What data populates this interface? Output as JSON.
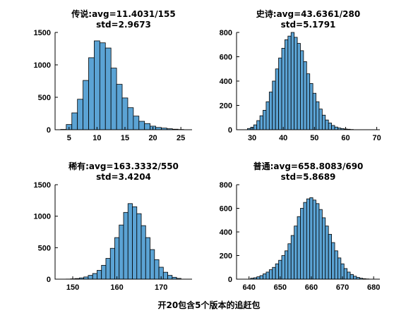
{
  "figure_title": "开20包含5个版本的追赶包",
  "colors": {
    "bar_fill": "#5ba3d4",
    "bar_edge": "#000000",
    "background": "#ffffff"
  },
  "chart_data": [
    {
      "type": "bar",
      "title": [
        "传说:avg=11.4031/155",
        "std=2.9673"
      ],
      "xlabel": "",
      "ylabel": "",
      "xlim": [
        2.5,
        27
      ],
      "ylim": [
        0,
        1500
      ],
      "xticks": [
        5,
        10,
        15,
        20,
        25
      ],
      "yticks": [
        0,
        500,
        1000,
        1500
      ],
      "bin_width": 1,
      "x": [
        4,
        5,
        6,
        7,
        8,
        9,
        10,
        11,
        12,
        13,
        14,
        15,
        16,
        17,
        18,
        19,
        20,
        21,
        22,
        23,
        24,
        25
      ],
      "values": [
        5,
        80,
        260,
        470,
        760,
        1110,
        1370,
        1340,
        1260,
        950,
        700,
        490,
        340,
        210,
        130,
        95,
        55,
        35,
        25,
        15,
        8,
        4
      ]
    },
    {
      "type": "bar",
      "title": [
        "史诗:avg=43.6361/280",
        "std=5.1791"
      ],
      "xlabel": "",
      "ylabel": "",
      "xlim": [
        25,
        71
      ],
      "ylim": [
        0,
        800
      ],
      "xticks": [
        30,
        40,
        50,
        60,
        70
      ],
      "yticks": [
        0,
        200,
        400,
        600,
        800
      ],
      "bin_width": 1,
      "x": [
        29,
        30,
        31,
        32,
        33,
        34,
        35,
        36,
        37,
        38,
        39,
        40,
        41,
        42,
        43,
        44,
        45,
        46,
        47,
        48,
        49,
        50,
        51,
        52,
        53,
        54,
        55,
        56,
        57,
        58,
        59,
        60,
        61,
        62
      ],
      "values": [
        10,
        20,
        40,
        75,
        115,
        160,
        230,
        310,
        400,
        500,
        590,
        670,
        740,
        770,
        800,
        760,
        710,
        650,
        560,
        460,
        380,
        300,
        230,
        170,
        120,
        80,
        55,
        35,
        22,
        14,
        9,
        6,
        4,
        2
      ]
    },
    {
      "type": "bar",
      "title": [
        "稀有:avg=163.3332/550",
        "std=3.4204"
      ],
      "xlabel": "",
      "ylabel": "",
      "xlim": [
        146,
        177
      ],
      "ylim": [
        0,
        1500
      ],
      "xticks": [
        150,
        160,
        170
      ],
      "yticks": [
        0,
        500,
        1000,
        1500
      ],
      "bin_width": 1,
      "x": [
        149,
        150,
        151,
        152,
        153,
        154,
        155,
        156,
        157,
        158,
        159,
        160,
        161,
        162,
        163,
        164,
        165,
        166,
        167,
        168,
        169,
        170,
        171,
        172,
        173,
        174
      ],
      "values": [
        2,
        5,
        10,
        20,
        35,
        60,
        90,
        140,
        220,
        330,
        490,
        660,
        860,
        1060,
        1200,
        1150,
        1040,
        850,
        660,
        470,
        310,
        190,
        110,
        60,
        30,
        12
      ]
    },
    {
      "type": "bar",
      "title": [
        "普通:avg=658.8083/690",
        "std=5.8689"
      ],
      "xlabel": "",
      "ylabel": "",
      "xlim": [
        636,
        682
      ],
      "ylim": [
        0,
        800
      ],
      "xticks": [
        640,
        650,
        660,
        670,
        680
      ],
      "yticks": [
        0,
        200,
        400,
        600,
        800
      ],
      "bin_width": 1,
      "x": [
        641,
        642,
        643,
        644,
        645,
        646,
        647,
        648,
        649,
        650,
        651,
        652,
        653,
        654,
        655,
        656,
        657,
        658,
        659,
        660,
        661,
        662,
        663,
        664,
        665,
        666,
        667,
        668,
        669,
        670,
        671,
        672,
        673,
        674,
        675,
        676,
        677,
        678
      ],
      "values": [
        8,
        12,
        20,
        30,
        45,
        60,
        80,
        100,
        130,
        160,
        200,
        240,
        300,
        370,
        450,
        530,
        600,
        650,
        680,
        690,
        670,
        640,
        590,
        520,
        450,
        380,
        310,
        240,
        180,
        130,
        90,
        60,
        40,
        25,
        15,
        8,
        4,
        2
      ]
    }
  ]
}
